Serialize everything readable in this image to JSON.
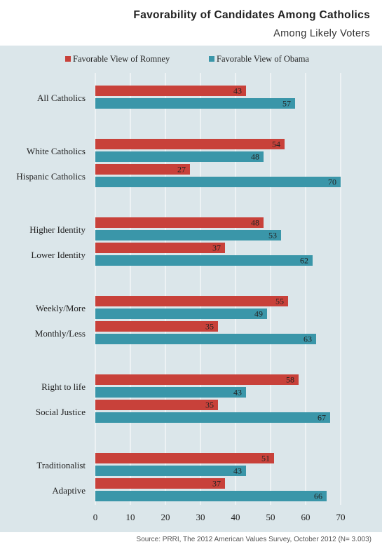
{
  "title": "Favorability of Candidates Among Catholics",
  "subtitle": "Among Likely Voters",
  "source": "Source: PRRI, The 2012 American Values Survey, October 2012 (N= 3.003)",
  "colors": {
    "romney": "#c8413a",
    "obama": "#3a96a9",
    "panel": "#dbe6ea",
    "grid": "#ffffff"
  },
  "chart_data": {
    "type": "bar",
    "orientation": "horizontal",
    "title": "Favorability of Candidates Among Catholics",
    "subtitle": "Among Likely Voters",
    "legend_position": "top",
    "categories": [
      "All Catholics",
      "White Catholics",
      "Hispanic Catholics",
      "Higher Identity",
      "Lower Identity",
      "Weekly/More",
      "Monthly/Less",
      "Right to life",
      "Social Justice",
      "Traditionalist",
      "Adaptive"
    ],
    "series": [
      {
        "name": "Favorable View of Romney",
        "color": "#c8413a",
        "values": [
          43,
          54,
          27,
          48,
          37,
          55,
          35,
          58,
          35,
          51,
          37
        ]
      },
      {
        "name": "Favorable View of Obama",
        "color": "#3a96a9",
        "values": [
          57,
          48,
          70,
          53,
          62,
          49,
          63,
          43,
          67,
          43,
          66
        ]
      }
    ],
    "xlim": [
      0,
      70
    ],
    "xticks": [
      0,
      10,
      20,
      30,
      40,
      50,
      60,
      70
    ],
    "grid": true,
    "data_labels": true
  }
}
